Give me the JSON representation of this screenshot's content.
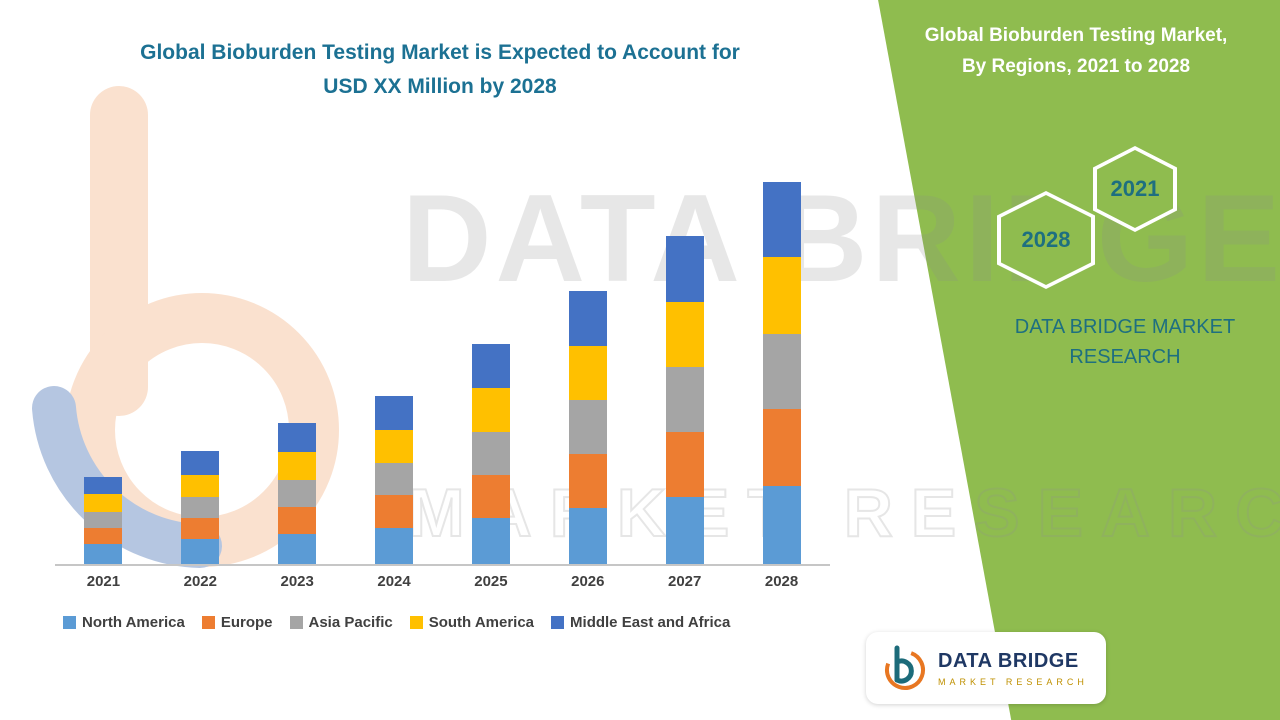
{
  "title": {
    "line1": "Global Bioburden Testing Market is Expected to Account for",
    "line2": "USD XX Million by 2028"
  },
  "chart_data": {
    "type": "bar",
    "stacked": true,
    "title": "Global Bioburden Testing Market is Expected to Account for USD XX Million by 2028",
    "categories": [
      "2021",
      "2022",
      "2023",
      "2024",
      "2025",
      "2026",
      "2027",
      "2028"
    ],
    "series": [
      {
        "name": "North America",
        "color": "#5B9BD5",
        "values": [
          20,
          25,
          30,
          36,
          46,
          56,
          67,
          78
        ]
      },
      {
        "name": "Europe",
        "color": "#ED7D31",
        "values": [
          16,
          21,
          27,
          33,
          43,
          54,
          65,
          77
        ]
      },
      {
        "name": "Asia Pacific",
        "color": "#A5A5A5",
        "values": [
          16,
          21,
          27,
          32,
          43,
          54,
          65,
          75
        ]
      },
      {
        "name": "South America",
        "color": "#FFC000",
        "values": [
          18,
          22,
          28,
          33,
          44,
          54,
          65,
          77
        ]
      },
      {
        "name": "Middle East and Africa",
        "color": "#4472C4",
        "values": [
          17,
          24,
          29,
          34,
          44,
          55,
          66,
          75
        ]
      }
    ],
    "xlabel": "",
    "ylabel": "",
    "ylim": [
      0,
      404
    ],
    "grid": false,
    "legend_position": "bottom"
  },
  "side_panel": {
    "heading_line1": "Global Bioburden Testing Market,",
    "heading_line2": "By Regions, 2021 to 2028",
    "hexagons": [
      {
        "year": "2028"
      },
      {
        "year": "2021"
      }
    ],
    "brand_text": "DATA BRIDGE MARKET RESEARCH",
    "background_color": "#8FBC4F",
    "accent_text_color": "#1E6F80"
  },
  "logo_card": {
    "brand": "DATA BRIDGE",
    "tagline": "MARKET RESEARCH"
  },
  "watermark": {
    "line1": "DATA BRIDGE",
    "line2": "MARKET RESEARCH"
  }
}
